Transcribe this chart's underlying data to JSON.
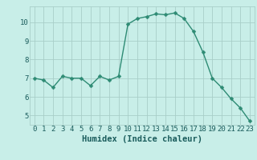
{
  "x": [
    0,
    1,
    2,
    3,
    4,
    5,
    6,
    7,
    8,
    9,
    10,
    11,
    12,
    13,
    14,
    15,
    16,
    17,
    18,
    19,
    20,
    21,
    22,
    23
  ],
  "y": [
    7.0,
    6.9,
    6.5,
    7.1,
    7.0,
    7.0,
    6.6,
    7.1,
    6.9,
    7.1,
    9.9,
    10.2,
    10.3,
    10.45,
    10.4,
    10.5,
    10.2,
    9.5,
    8.4,
    7.0,
    6.5,
    5.9,
    5.4,
    4.7
  ],
  "line_color": "#2e8b74",
  "marker_color": "#2e8b74",
  "bg_color": "#c8eee8",
  "grid_color": "#a8cec8",
  "xlabel": "Humidex (Indice chaleur)",
  "xlim": [
    -0.5,
    23.5
  ],
  "ylim": [
    4.5,
    10.85
  ],
  "yticks": [
    5,
    6,
    7,
    8,
    9,
    10
  ],
  "xticks": [
    0,
    1,
    2,
    3,
    4,
    5,
    6,
    7,
    8,
    9,
    10,
    11,
    12,
    13,
    14,
    15,
    16,
    17,
    18,
    19,
    20,
    21,
    22,
    23
  ],
  "font_color": "#1a5c5c",
  "xlabel_fontsize": 7.5,
  "tick_fontsize": 6.5,
  "linewidth": 1.0,
  "markersize": 2.5
}
